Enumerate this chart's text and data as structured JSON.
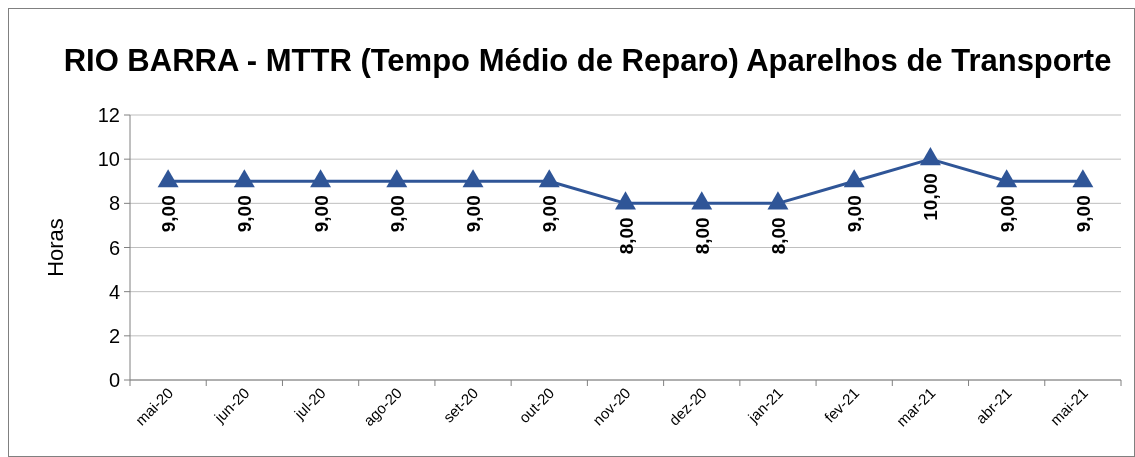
{
  "chart_data": {
    "type": "line",
    "title": "RIO BARRA - MTTR (Tempo Médio de Reparo) Aparelhos de Transporte",
    "ylabel": "Horas",
    "categories": [
      "mai-20",
      "jun-20",
      "jul-20",
      "ago-20",
      "set-20",
      "out-20",
      "nov-20",
      "dez-20",
      "jan-21",
      "fev-21",
      "mar-21",
      "abr-21",
      "mai-21"
    ],
    "series": [
      {
        "color": "#2f5597",
        "values": [
          9,
          9,
          9,
          9,
          9,
          9,
          8,
          8,
          8,
          9,
          10,
          9,
          9
        ],
        "value_labels": [
          "9,00",
          "9,00",
          "9,00",
          "9,00",
          "9,00",
          "9,00",
          "8,00",
          "8,00",
          "8,00",
          "9,00",
          "10,00",
          "9,00",
          "9,00"
        ]
      }
    ],
    "ylim": [
      0,
      12
    ],
    "yticks": [
      0,
      2,
      4,
      6,
      8,
      10,
      12
    ],
    "grid": "y",
    "marker": "triangle",
    "line_style": "solid"
  }
}
